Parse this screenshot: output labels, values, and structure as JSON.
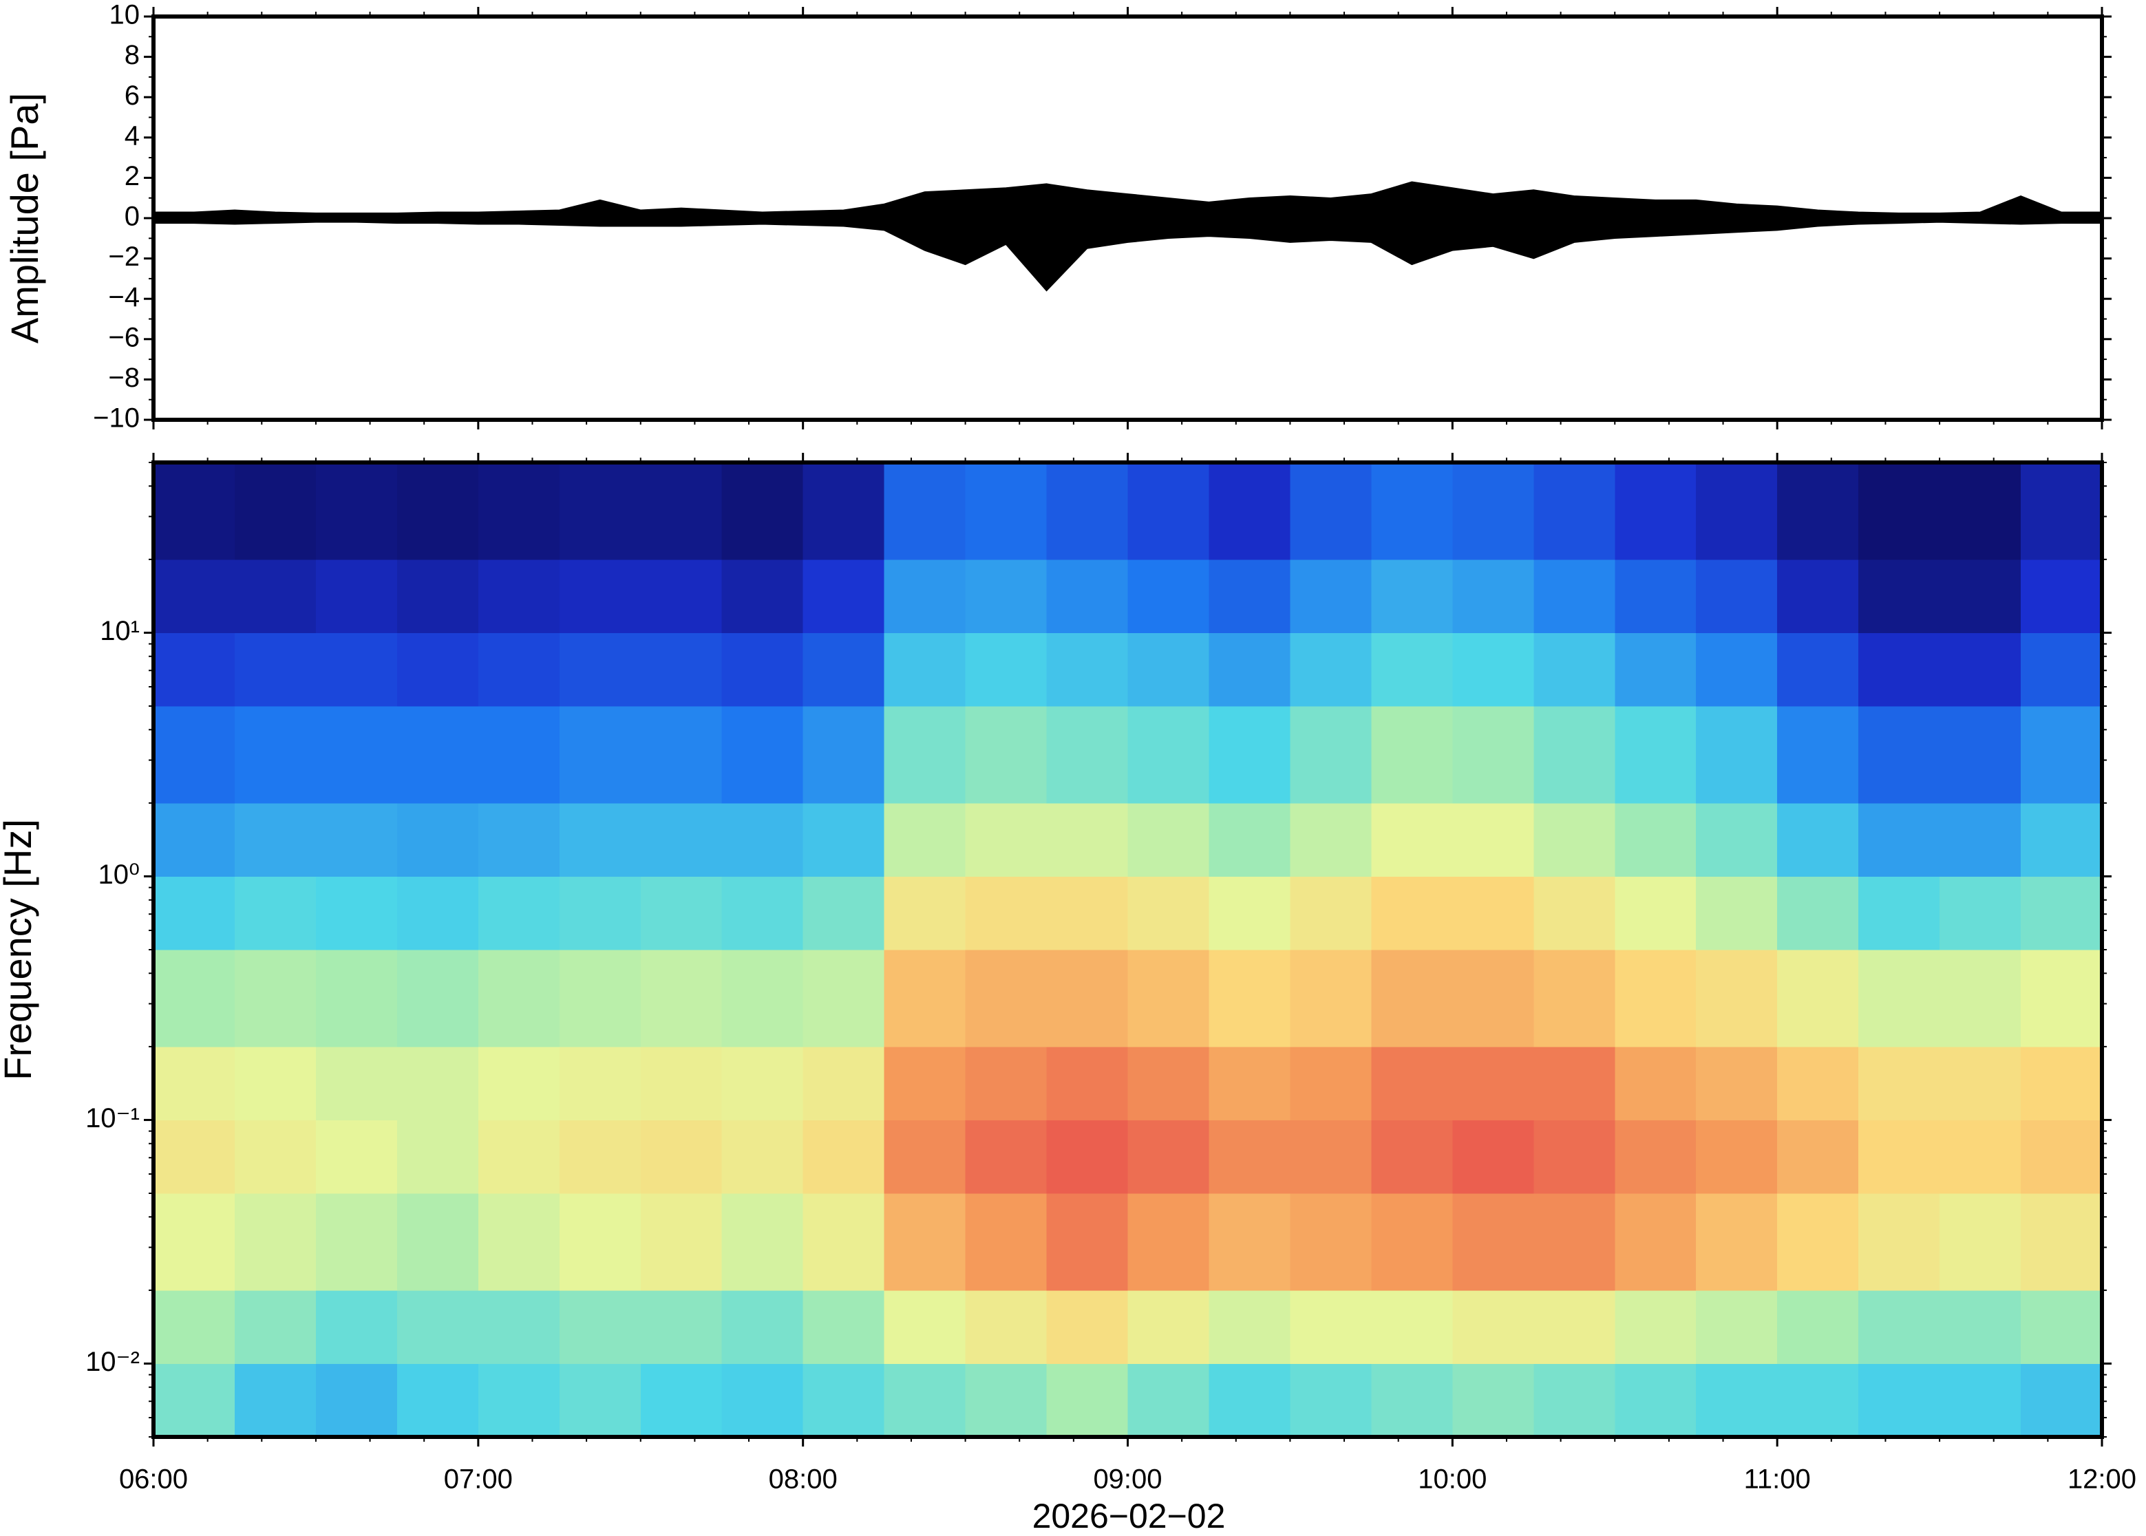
{
  "chart_data": [
    {
      "type": "envelope",
      "ylabel": "Amplitude [Pa]",
      "color": "#000000",
      "xlim": [
        6,
        12
      ],
      "ylim": [
        -10,
        10
      ],
      "yticks": [
        10,
        8,
        6,
        4,
        2,
        0,
        {
          "value": -2,
          "label": "−2"
        },
        {
          "value": -4,
          "label": "−4"
        },
        {
          "value": -6,
          "label": "−6"
        },
        {
          "value": -8,
          "label": "−8"
        },
        {
          "value": -10,
          "label": "−10"
        }
      ],
      "x": [
        6,
        6.125,
        6.25,
        6.375,
        6.5,
        6.625,
        6.75,
        6.875,
        7,
        7.125,
        7.25,
        7.375,
        7.5,
        7.625,
        7.75,
        7.875,
        8,
        8.125,
        8.25,
        8.375,
        8.5,
        8.625,
        8.75,
        8.875,
        9,
        9.125,
        9.25,
        9.375,
        9.5,
        9.625,
        9.75,
        9.875,
        10,
        10.125,
        10.25,
        10.375,
        10.5,
        10.625,
        10.75,
        10.875,
        11,
        11.125,
        11.25,
        11.375,
        11.5,
        11.625,
        11.75,
        11.875,
        12
      ],
      "upper": [
        0.3,
        0.3,
        0.4,
        0.3,
        0.25,
        0.25,
        0.25,
        0.3,
        0.3,
        0.35,
        0.4,
        0.9,
        0.4,
        0.5,
        0.4,
        0.3,
        0.35,
        0.4,
        0.7,
        1.3,
        1.4,
        1.5,
        1.7,
        1.4,
        1.2,
        1.0,
        0.8,
        1.0,
        1.1,
        1.0,
        1.2,
        1.8,
        1.5,
        1.2,
        1.4,
        1.1,
        1.0,
        0.9,
        0.9,
        0.7,
        0.6,
        0.4,
        0.3,
        0.25,
        0.25,
        0.3,
        1.1,
        0.3,
        0.3
      ],
      "lower": [
        -0.25,
        -0.25,
        -0.3,
        -0.25,
        -0.2,
        -0.2,
        -0.25,
        -0.25,
        -0.3,
        -0.3,
        -0.35,
        -0.4,
        -0.4,
        -0.4,
        -0.35,
        -0.3,
        -0.35,
        -0.4,
        -0.6,
        -1.6,
        -2.3,
        -1.3,
        -3.6,
        -1.5,
        -1.2,
        -1.0,
        -0.9,
        -1.0,
        -1.2,
        -1.1,
        -1.2,
        -2.3,
        -1.6,
        -1.4,
        -2.0,
        -1.2,
        -1.0,
        -0.9,
        -0.8,
        -0.7,
        -0.6,
        -0.4,
        -0.3,
        -0.25,
        -0.2,
        -0.25,
        -0.3,
        -0.25,
        -0.25
      ]
    },
    {
      "type": "heatmap",
      "ylabel": "Frequency [Hz]",
      "xlabel": "2026−02−02",
      "log_y": true,
      "xlim": [
        6,
        12
      ],
      "ylim": [
        0.005,
        50
      ],
      "xticks": [
        {
          "value": 6,
          "label": "06:00"
        },
        {
          "value": 7,
          "label": "07:00"
        },
        {
          "value": 8,
          "label": "08:00"
        },
        {
          "value": 9,
          "label": "09:00"
        },
        {
          "value": 10,
          "label": "10:00"
        },
        {
          "value": 11,
          "label": "11:00"
        },
        {
          "value": 12,
          "label": "12:00"
        }
      ],
      "yticks": [
        {
          "value": 0.01,
          "label": "10⁻²"
        },
        {
          "value": 0.1,
          "label": "10⁻¹"
        },
        {
          "value": 1,
          "label": "10⁰"
        },
        {
          "value": 10,
          "label": "10¹"
        }
      ],
      "colorscale": [
        [
          0,
          "#0b0a5a"
        ],
        [
          0.15,
          "#1a2fd0"
        ],
        [
          0.3,
          "#1e78f0"
        ],
        [
          0.45,
          "#4cd6e8"
        ],
        [
          0.55,
          "#a8ecb0"
        ],
        [
          0.62,
          "#e6f59a"
        ],
        [
          0.7,
          "#fbd77a"
        ],
        [
          0.8,
          "#f59a5a"
        ],
        [
          0.9,
          "#e8504c"
        ]
      ],
      "x_edges": [
        6,
        6.25,
        6.5,
        6.75,
        7,
        7.25,
        7.5,
        7.75,
        8,
        8.25,
        8.5,
        8.75,
        9,
        9.25,
        9.5,
        9.75,
        10,
        10.25,
        10.5,
        10.75,
        11,
        11.25,
        11.5,
        11.75,
        12
      ],
      "y_edges": [
        0.005,
        0.01,
        0.02,
        0.05,
        0.1,
        0.2,
        0.5,
        1,
        2,
        5,
        10,
        20,
        50
      ],
      "z": [
        [
          0.5,
          0.55,
          0.62,
          0.66,
          0.63,
          0.55,
          0.44,
          0.36,
          0.28,
          0.18,
          0.1,
          0.05
        ],
        [
          0.42,
          0.52,
          0.6,
          0.64,
          0.62,
          0.56,
          0.46,
          0.38,
          0.3,
          0.2,
          0.1,
          0.04
        ],
        [
          0.4,
          0.48,
          0.58,
          0.62,
          0.6,
          0.55,
          0.45,
          0.38,
          0.3,
          0.2,
          0.12,
          0.05
        ],
        [
          0.44,
          0.5,
          0.56,
          0.6,
          0.6,
          0.54,
          0.44,
          0.37,
          0.3,
          0.18,
          0.1,
          0.04
        ],
        [
          0.46,
          0.5,
          0.6,
          0.64,
          0.62,
          0.56,
          0.46,
          0.38,
          0.3,
          0.2,
          0.12,
          0.05
        ],
        [
          0.48,
          0.52,
          0.62,
          0.66,
          0.63,
          0.57,
          0.47,
          0.4,
          0.32,
          0.22,
          0.13,
          0.06
        ],
        [
          0.45,
          0.52,
          0.64,
          0.67,
          0.64,
          0.58,
          0.48,
          0.4,
          0.32,
          0.22,
          0.13,
          0.06
        ],
        [
          0.44,
          0.5,
          0.6,
          0.65,
          0.63,
          0.57,
          0.47,
          0.4,
          0.3,
          0.2,
          0.1,
          0.04
        ],
        [
          0.47,
          0.54,
          0.64,
          0.68,
          0.65,
          0.58,
          0.5,
          0.42,
          0.34,
          0.24,
          0.16,
          0.08
        ],
        [
          0.5,
          0.62,
          0.76,
          0.82,
          0.8,
          0.74,
          0.66,
          0.58,
          0.5,
          0.42,
          0.35,
          0.26
        ],
        [
          0.52,
          0.65,
          0.8,
          0.86,
          0.82,
          0.76,
          0.68,
          0.6,
          0.52,
          0.44,
          0.36,
          0.28
        ],
        [
          0.55,
          0.68,
          0.84,
          0.88,
          0.84,
          0.76,
          0.68,
          0.6,
          0.5,
          0.42,
          0.33,
          0.24
        ],
        [
          0.5,
          0.64,
          0.8,
          0.86,
          0.82,
          0.74,
          0.66,
          0.58,
          0.48,
          0.4,
          0.3,
          0.2
        ],
        [
          0.46,
          0.6,
          0.76,
          0.82,
          0.78,
          0.7,
          0.62,
          0.54,
          0.45,
          0.36,
          0.26,
          0.14
        ],
        [
          0.48,
          0.62,
          0.78,
          0.82,
          0.8,
          0.72,
          0.66,
          0.58,
          0.5,
          0.42,
          0.34,
          0.24
        ],
        [
          0.5,
          0.62,
          0.8,
          0.86,
          0.84,
          0.76,
          0.7,
          0.62,
          0.55,
          0.46,
          0.38,
          0.28
        ],
        [
          0.52,
          0.64,
          0.82,
          0.88,
          0.84,
          0.76,
          0.7,
          0.62,
          0.54,
          0.45,
          0.36,
          0.26
        ],
        [
          0.5,
          0.64,
          0.82,
          0.86,
          0.84,
          0.74,
          0.66,
          0.58,
          0.5,
          0.42,
          0.32,
          0.22
        ],
        [
          0.48,
          0.6,
          0.78,
          0.82,
          0.78,
          0.7,
          0.62,
          0.54,
          0.46,
          0.36,
          0.26,
          0.16
        ],
        [
          0.46,
          0.58,
          0.74,
          0.8,
          0.76,
          0.68,
          0.58,
          0.5,
          0.42,
          0.32,
          0.22,
          0.12
        ],
        [
          0.46,
          0.55,
          0.7,
          0.76,
          0.72,
          0.64,
          0.52,
          0.42,
          0.32,
          0.22,
          0.12,
          0.06
        ],
        [
          0.44,
          0.52,
          0.66,
          0.7,
          0.68,
          0.6,
          0.46,
          0.36,
          0.26,
          0.14,
          0.06,
          0.03
        ],
        [
          0.44,
          0.52,
          0.64,
          0.7,
          0.68,
          0.6,
          0.48,
          0.36,
          0.26,
          0.14,
          0.06,
          0.03
        ],
        [
          0.42,
          0.54,
          0.66,
          0.72,
          0.7,
          0.62,
          0.5,
          0.42,
          0.34,
          0.24,
          0.15,
          0.1
        ]
      ]
    }
  ]
}
